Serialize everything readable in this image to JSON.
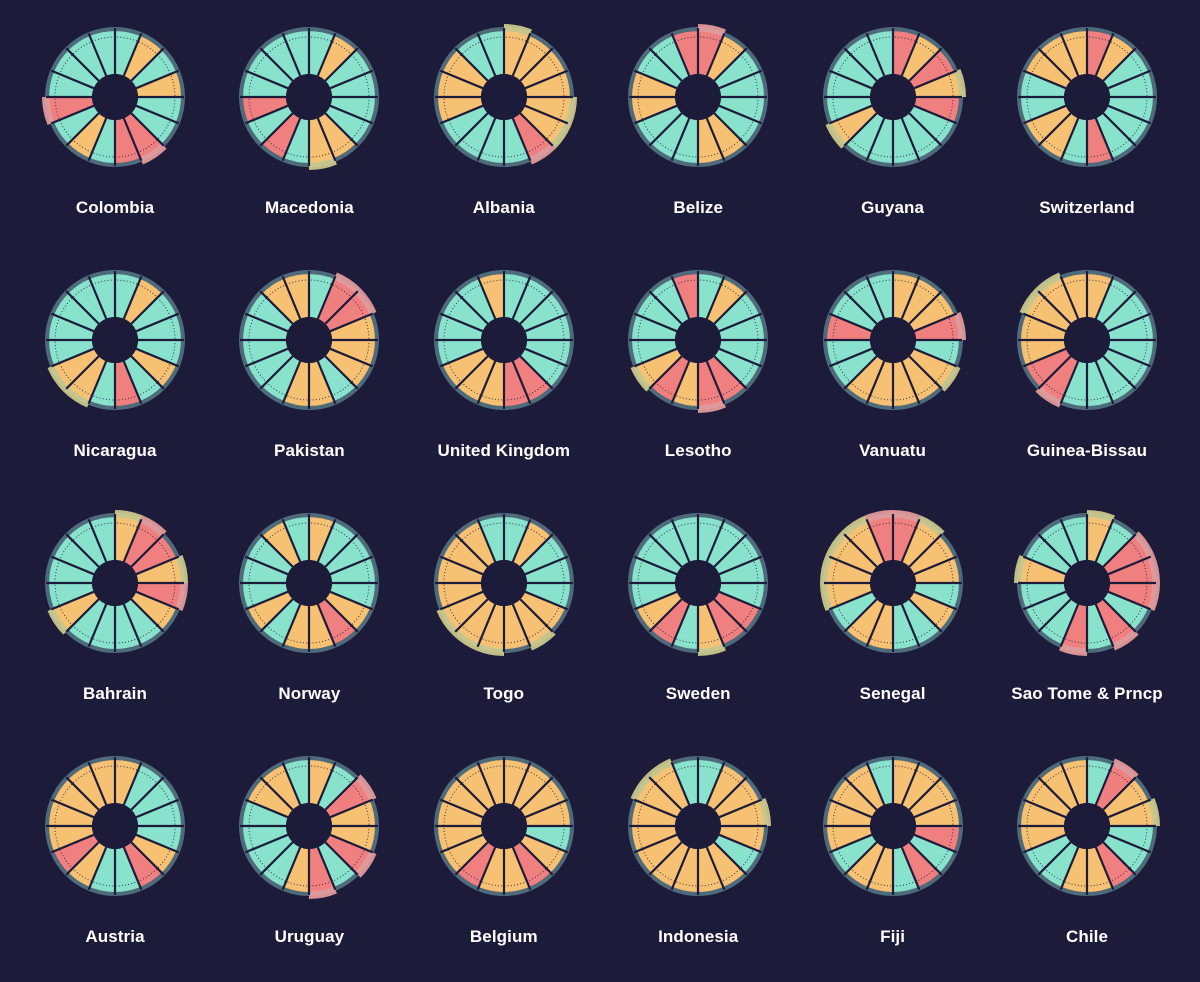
{
  "chart_data": {
    "type": "radial-bar",
    "title": "",
    "segments_per_chart": 16,
    "colors": {
      "background": "#1c1b3a",
      "high": "#f7c173",
      "low": "#f08080",
      "base": "#89e2cc",
      "ring": "#4e6b7c",
      "overflow_high": "#d3cf8f",
      "overflow_low": "#eba0a0",
      "separator": "#1c1b3a",
      "guide": "#1c1b3a"
    },
    "charts": [
      {
        "name": "Colombia",
        "values": [
          1,
          2,
          1,
          2,
          1,
          1,
          3,
          3,
          1,
          2,
          1,
          3,
          1,
          1,
          1,
          1
        ],
        "overflow": [
          0,
          0,
          0,
          0,
          0,
          0,
          1,
          0,
          0,
          0,
          0,
          1,
          0,
          0,
          0,
          0
        ]
      },
      {
        "name": "Macedonia",
        "values": [
          1,
          2,
          1,
          1,
          1,
          1,
          2,
          2,
          1,
          3,
          1,
          3,
          1,
          1,
          1,
          1
        ],
        "overflow": [
          0,
          0,
          0,
          0,
          0,
          0,
          0,
          1,
          0,
          0,
          0,
          0,
          0,
          0,
          0,
          0
        ]
      },
      {
        "name": "Albania",
        "values": [
          2,
          2,
          2,
          2,
          2,
          2,
          3,
          1,
          1,
          1,
          1,
          2,
          2,
          2,
          1,
          1
        ],
        "overflow": [
          1,
          0,
          0,
          0,
          1,
          1,
          1,
          0,
          0,
          0,
          0,
          0,
          0,
          0,
          0,
          0
        ]
      },
      {
        "name": "Belize",
        "values": [
          3,
          2,
          1,
          1,
          1,
          1,
          2,
          2,
          1,
          1,
          1,
          2,
          2,
          1,
          1,
          3
        ],
        "overflow": [
          1,
          0,
          0,
          0,
          0,
          0,
          0,
          0,
          0,
          0,
          0,
          0,
          0,
          0,
          0,
          0
        ]
      },
      {
        "name": "Guyana",
        "values": [
          3,
          2,
          3,
          2,
          3,
          1,
          1,
          1,
          1,
          1,
          2,
          1,
          1,
          1,
          1,
          1
        ],
        "overflow": [
          0,
          0,
          0,
          1,
          0,
          0,
          0,
          0,
          0,
          0,
          1,
          0,
          0,
          0,
          0,
          0
        ]
      },
      {
        "name": "Switzerland",
        "values": [
          3,
          2,
          1,
          1,
          1,
          1,
          1,
          3,
          1,
          2,
          2,
          1,
          1,
          2,
          2,
          2
        ],
        "overflow": [
          0,
          0,
          0,
          0,
          0,
          0,
          0,
          0,
          0,
          0,
          0,
          0,
          0,
          0,
          0,
          0
        ]
      },
      {
        "name": "Nicaragua",
        "values": [
          1,
          2,
          1,
          1,
          1,
          2,
          1,
          3,
          1,
          2,
          2,
          1,
          1,
          1,
          1,
          1
        ],
        "overflow": [
          0,
          0,
          0,
          0,
          0,
          0,
          0,
          0,
          0,
          1,
          1,
          0,
          0,
          0,
          0,
          0
        ]
      },
      {
        "name": "Pakistan",
        "values": [
          1,
          3,
          3,
          2,
          2,
          2,
          1,
          2,
          2,
          1,
          1,
          1,
          1,
          1,
          2,
          2
        ],
        "overflow": [
          0,
          1,
          1,
          0,
          0,
          0,
          0,
          0,
          0,
          0,
          0,
          0,
          0,
          0,
          0,
          0
        ]
      },
      {
        "name": "United Kingdom",
        "values": [
          1,
          1,
          1,
          1,
          1,
          1,
          3,
          3,
          2,
          2,
          2,
          1,
          1,
          1,
          1,
          2
        ],
        "overflow": [
          0,
          0,
          0,
          0,
          0,
          0,
          0,
          0,
          0,
          0,
          0,
          0,
          0,
          0,
          0,
          0
        ]
      },
      {
        "name": "Lesotho",
        "values": [
          1,
          2,
          1,
          1,
          1,
          1,
          3,
          3,
          2,
          3,
          2,
          1,
          1,
          1,
          1,
          3
        ],
        "overflow": [
          0,
          0,
          0,
          0,
          0,
          0,
          0,
          1,
          0,
          0,
          1,
          0,
          0,
          0,
          0,
          0
        ]
      },
      {
        "name": "Vanuatu",
        "values": [
          2,
          2,
          2,
          3,
          1,
          2,
          2,
          2,
          2,
          2,
          1,
          1,
          3,
          1,
          1,
          1
        ],
        "overflow": [
          0,
          0,
          0,
          1,
          0,
          1,
          0,
          0,
          0,
          0,
          0,
          0,
          0,
          0,
          0,
          0
        ]
      },
      {
        "name": "Guinea-Bissau",
        "values": [
          2,
          1,
          1,
          1,
          1,
          1,
          1,
          1,
          1,
          3,
          3,
          2,
          2,
          2,
          2,
          2
        ],
        "overflow": [
          0,
          0,
          0,
          0,
          0,
          0,
          0,
          0,
          0,
          1,
          0,
          0,
          0,
          1,
          1,
          0
        ]
      },
      {
        "name": "Bahrain",
        "values": [
          2,
          3,
          3,
          2,
          3,
          2,
          1,
          1,
          1,
          1,
          2,
          1,
          1,
          1,
          1,
          1
        ],
        "overflow": [
          1,
          1,
          0,
          1,
          1,
          0,
          0,
          0,
          0,
          0,
          1,
          0,
          0,
          0,
          0,
          0
        ]
      },
      {
        "name": "Norway",
        "values": [
          2,
          1,
          1,
          1,
          1,
          2,
          3,
          2,
          2,
          1,
          2,
          1,
          1,
          1,
          2,
          1
        ],
        "overflow": [
          0,
          0,
          0,
          0,
          0,
          0,
          0,
          0,
          0,
          0,
          0,
          0,
          0,
          0,
          0,
          0
        ]
      },
      {
        "name": "Togo",
        "values": [
          1,
          2,
          1,
          1,
          1,
          2,
          2,
          2,
          2,
          2,
          2,
          2,
          2,
          2,
          2,
          1
        ],
        "overflow": [
          0,
          0,
          0,
          0,
          0,
          0,
          1,
          0,
          1,
          1,
          1,
          0,
          0,
          0,
          0,
          0
        ]
      },
      {
        "name": "Sweden",
        "values": [
          1,
          1,
          1,
          1,
          1,
          3,
          3,
          2,
          1,
          3,
          2,
          1,
          1,
          1,
          1,
          1
        ],
        "overflow": [
          0,
          0,
          0,
          0,
          0,
          0,
          0,
          1,
          0,
          0,
          0,
          0,
          0,
          0,
          0,
          0
        ]
      },
      {
        "name": "Senegal",
        "values": [
          3,
          2,
          2,
          2,
          1,
          2,
          1,
          1,
          2,
          2,
          1,
          2,
          2,
          2,
          2,
          3
        ],
        "overflow": [
          1,
          1,
          0,
          0,
          0,
          0,
          0,
          0,
          0,
          0,
          0,
          1,
          1,
          1,
          1,
          1
        ]
      },
      {
        "name": "Sao Tome & Prncp",
        "values": [
          2,
          1,
          3,
          3,
          3,
          1,
          3,
          1,
          3,
          1,
          1,
          1,
          2,
          1,
          1,
          1
        ],
        "overflow": [
          1,
          0,
          1,
          1,
          1,
          0,
          1,
          0,
          1,
          0,
          0,
          0,
          1,
          0,
          0,
          0
        ]
      },
      {
        "name": "Austria",
        "values": [
          2,
          1,
          1,
          1,
          1,
          2,
          3,
          1,
          1,
          2,
          3,
          2,
          2,
          2,
          2,
          2
        ],
        "overflow": [
          0,
          0,
          0,
          0,
          0,
          0,
          0,
          0,
          0,
          0,
          0,
          0,
          0,
          0,
          0,
          0
        ]
      },
      {
        "name": "Uruguay",
        "values": [
          2,
          1,
          3,
          2,
          2,
          3,
          1,
          3,
          2,
          1,
          1,
          1,
          1,
          2,
          2,
          1
        ],
        "overflow": [
          0,
          0,
          1,
          0,
          0,
          1,
          0,
          1,
          0,
          0,
          0,
          0,
          0,
          0,
          0,
          0
        ]
      },
      {
        "name": "Belgium",
        "values": [
          2,
          2,
          2,
          2,
          1,
          2,
          3,
          2,
          2,
          3,
          2,
          2,
          2,
          2,
          2,
          2
        ],
        "overflow": [
          0,
          0,
          0,
          0,
          0,
          0,
          0,
          0,
          0,
          0,
          0,
          0,
          0,
          0,
          0,
          0
        ]
      },
      {
        "name": "Indonesia",
        "values": [
          1,
          2,
          2,
          2,
          2,
          1,
          2,
          2,
          2,
          2,
          2,
          2,
          2,
          2,
          2,
          1
        ],
        "overflow": [
          0,
          0,
          0,
          1,
          0,
          0,
          0,
          0,
          0,
          0,
          0,
          0,
          0,
          1,
          1,
          0
        ]
      },
      {
        "name": "Fiji",
        "values": [
          2,
          2,
          2,
          2,
          3,
          1,
          3,
          1,
          2,
          2,
          1,
          2,
          2,
          2,
          2,
          1
        ],
        "overflow": [
          0,
          0,
          0,
          0,
          0,
          0,
          0,
          0,
          0,
          0,
          0,
          0,
          0,
          0,
          0,
          0
        ]
      },
      {
        "name": "Chile",
        "values": [
          1,
          3,
          2,
          2,
          1,
          1,
          3,
          2,
          2,
          1,
          1,
          2,
          2,
          2,
          2,
          2
        ],
        "overflow": [
          0,
          1,
          0,
          1,
          0,
          0,
          0,
          0,
          0,
          0,
          0,
          0,
          0,
          0,
          0,
          0
        ]
      }
    ]
  }
}
